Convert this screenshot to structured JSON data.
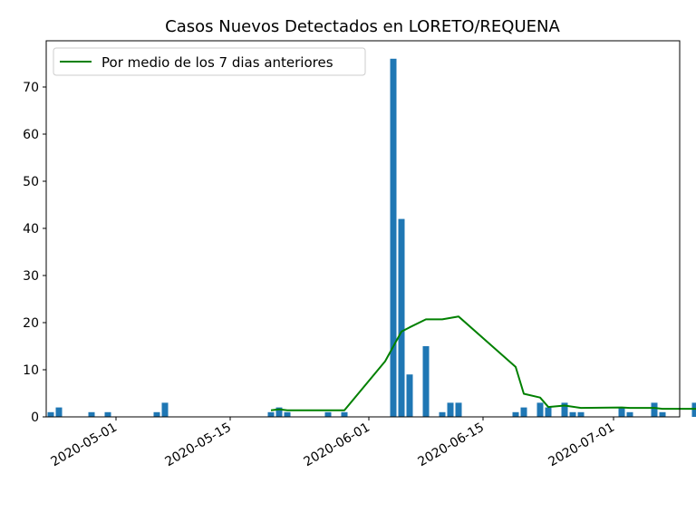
{
  "chart_data": {
    "type": "bar",
    "title": "Casos Nuevos Detectados en LORETO/REQUENA",
    "xlabel": "",
    "ylabel": "",
    "x_axis": "date",
    "xlim": [
      "2020-04-23",
      "2020-07-12"
    ],
    "ylim": [
      0,
      80
    ],
    "x_ticks": [
      "2020-05-01",
      "2020-05-15",
      "2020-06-01",
      "2020-06-15",
      "2020-07-01"
    ],
    "y_ticks": [
      0,
      10,
      20,
      30,
      40,
      50,
      60,
      70
    ],
    "grid": false,
    "legend_position": "top-left",
    "colors": {
      "bars": "#1f77b4",
      "line": "#008000"
    },
    "series": [
      {
        "type": "bar",
        "points": [
          {
            "x": "2020-04-23",
            "y": 1
          },
          {
            "x": "2020-04-24",
            "y": 2
          },
          {
            "x": "2020-04-28",
            "y": 1
          },
          {
            "x": "2020-04-30",
            "y": 1
          },
          {
            "x": "2020-05-06",
            "y": 1
          },
          {
            "x": "2020-05-07",
            "y": 3
          },
          {
            "x": "2020-05-20",
            "y": 1
          },
          {
            "x": "2020-05-21",
            "y": 2
          },
          {
            "x": "2020-05-22",
            "y": 1
          },
          {
            "x": "2020-05-27",
            "y": 1
          },
          {
            "x": "2020-05-29",
            "y": 1
          },
          {
            "x": "2020-06-04",
            "y": 76
          },
          {
            "x": "2020-06-05",
            "y": 42
          },
          {
            "x": "2020-06-06",
            "y": 9
          },
          {
            "x": "2020-06-08",
            "y": 15
          },
          {
            "x": "2020-06-10",
            "y": 1
          },
          {
            "x": "2020-06-11",
            "y": 3
          },
          {
            "x": "2020-06-12",
            "y": 3
          },
          {
            "x": "2020-06-19",
            "y": 1
          },
          {
            "x": "2020-06-20",
            "y": 2
          },
          {
            "x": "2020-06-22",
            "y": 3
          },
          {
            "x": "2020-06-23",
            "y": 2
          },
          {
            "x": "2020-06-25",
            "y": 3
          },
          {
            "x": "2020-06-26",
            "y": 1
          },
          {
            "x": "2020-06-27",
            "y": 1
          },
          {
            "x": "2020-07-02",
            "y": 2
          },
          {
            "x": "2020-07-03",
            "y": 1
          },
          {
            "x": "2020-07-06",
            "y": 3
          },
          {
            "x": "2020-07-07",
            "y": 1
          },
          {
            "x": "2020-07-11",
            "y": 3
          },
          {
            "x": "2020-07-12",
            "y": 2
          }
        ]
      },
      {
        "type": "line",
        "name": "Por medio de los 7 dias anteriores",
        "points": [
          {
            "x": "2020-05-20",
            "y": 1.4
          },
          {
            "x": "2020-05-21",
            "y": 1.6
          },
          {
            "x": "2020-05-22",
            "y": 1.4
          },
          {
            "x": "2020-05-29",
            "y": 1.4
          },
          {
            "x": "2020-06-03",
            "y": 11.8
          },
          {
            "x": "2020-06-05",
            "y": 18.1
          },
          {
            "x": "2020-06-06",
            "y": 19.0
          },
          {
            "x": "2020-06-08",
            "y": 20.7
          },
          {
            "x": "2020-06-10",
            "y": 20.7
          },
          {
            "x": "2020-06-12",
            "y": 21.3
          },
          {
            "x": "2020-06-19",
            "y": 10.6
          },
          {
            "x": "2020-06-20",
            "y": 4.9
          },
          {
            "x": "2020-06-22",
            "y": 4.1
          },
          {
            "x": "2020-06-23",
            "y": 2.1
          },
          {
            "x": "2020-06-25",
            "y": 2.4
          },
          {
            "x": "2020-06-27",
            "y": 1.9
          },
          {
            "x": "2020-07-02",
            "y": 2.0
          },
          {
            "x": "2020-07-03",
            "y": 1.9
          },
          {
            "x": "2020-07-06",
            "y": 1.9
          },
          {
            "x": "2020-07-07",
            "y": 1.7
          },
          {
            "x": "2020-07-12",
            "y": 1.7
          }
        ]
      }
    ]
  }
}
